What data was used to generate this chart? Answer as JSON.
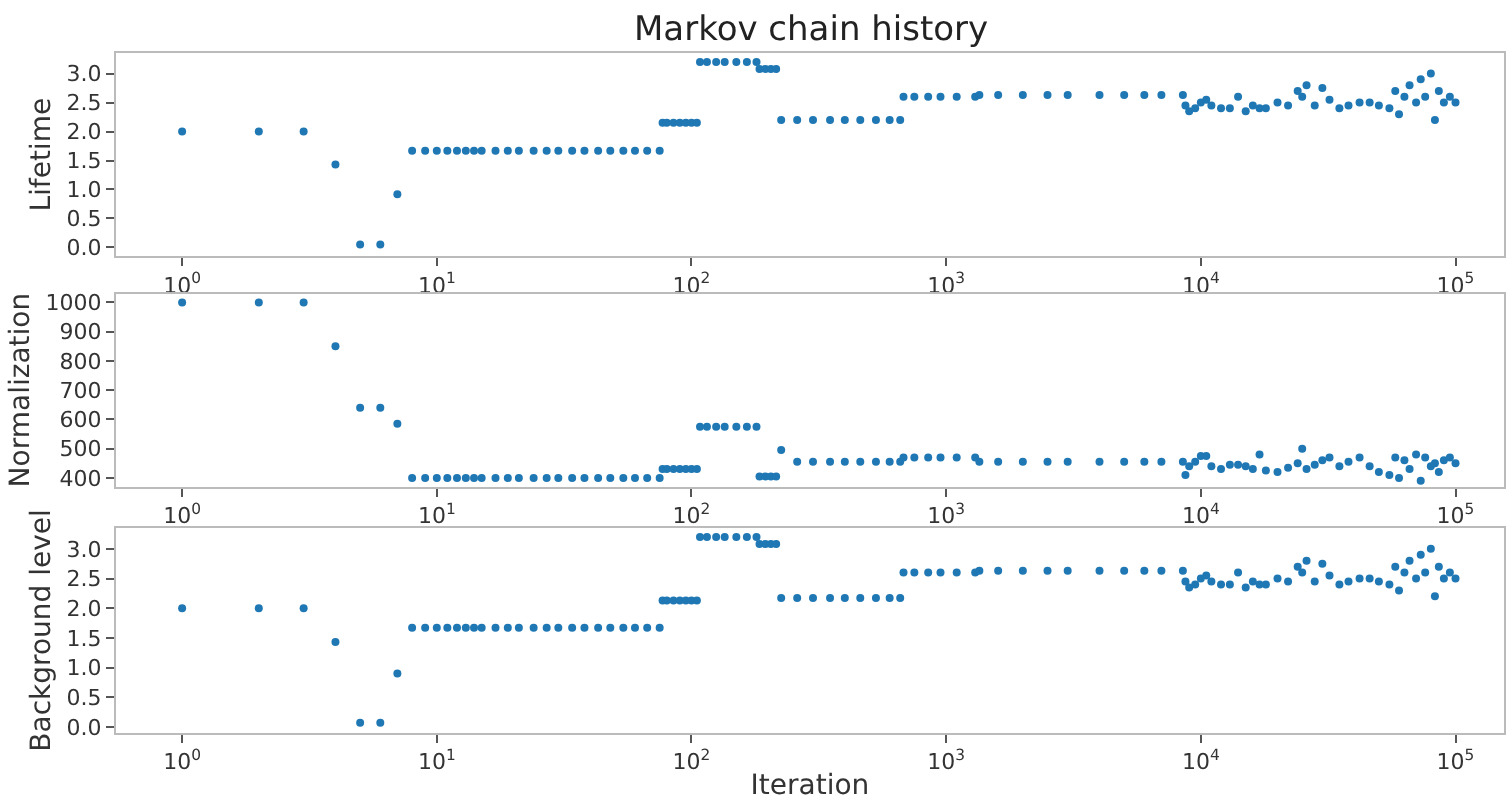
{
  "chart_data": [
    {
      "type": "scatter",
      "title": "Markov chain history",
      "ylabel": "Lifetime",
      "marker": "circle",
      "log": "x",
      "xlim": [
        0.55,
        155000
      ],
      "xticks": [
        {
          "value": 1,
          "label": "10$^{0}$"
        },
        {
          "value": 10,
          "label": "10$^{1}$"
        },
        {
          "value": 100,
          "label": "10$^{2}$"
        },
        {
          "value": 1000,
          "label": "10$^{3}$"
        },
        {
          "value": 10000,
          "label": "10$^{4}$"
        },
        {
          "value": 100000,
          "label": "10$^{5}$"
        }
      ],
      "ylim": [
        -0.15,
        3.35
      ],
      "yticks": [
        {
          "value": 0,
          "label": "0.0"
        },
        0.5,
        {
          "value": 1,
          "label": "1.0"
        },
        1.5,
        {
          "value": 2,
          "label": "2.0"
        },
        2.5,
        {
          "value": 3,
          "label": "3.0"
        }
      ],
      "series": [
        {
          "color": "#1f77b4",
          "x": [
            1,
            2,
            3,
            4,
            5,
            6,
            7,
            8,
            9,
            10,
            11,
            12,
            13,
            14,
            15,
            17,
            19,
            21,
            24,
            27,
            30,
            34,
            38,
            43,
            48,
            54,
            60,
            67,
            75,
            77,
            80,
            85,
            90,
            95,
            100,
            105,
            108,
            115,
            125,
            135,
            150,
            165,
            180,
            185,
            195,
            205,
            215,
            225,
            260,
            300,
            350,
            400,
            460,
            530,
            600,
            660,
            680,
            750,
            850,
            950,
            1100,
            1300,
            1350,
            1600,
            2000,
            2500,
            3000,
            4000,
            5000,
            6000,
            7000,
            8500,
            8700,
            9000,
            9500,
            10000,
            10500,
            11000,
            12000,
            13000,
            14000,
            15000,
            16000,
            17000,
            18000,
            20000,
            22000,
            24000,
            25000,
            26000,
            28000,
            30000,
            32000,
            35000,
            38000,
            42000,
            46000,
            50000,
            55000,
            58000,
            60000,
            63000,
            66000,
            70000,
            73000,
            76000,
            80000,
            83000,
            86000,
            90000,
            95000,
            100000
          ],
          "values": [
            2.0,
            2.0,
            2.0,
            1.43,
            0.05,
            0.05,
            0.92,
            1.67,
            1.67,
            1.67,
            1.67,
            1.67,
            1.67,
            1.67,
            1.67,
            1.67,
            1.67,
            1.67,
            1.67,
            1.67,
            1.67,
            1.67,
            1.67,
            1.67,
            1.67,
            1.67,
            1.67,
            1.67,
            1.67,
            2.15,
            2.15,
            2.15,
            2.15,
            2.15,
            2.15,
            2.15,
            3.2,
            3.2,
            3.2,
            3.2,
            3.2,
            3.2,
            3.2,
            3.08,
            3.08,
            3.08,
            3.08,
            2.2,
            2.2,
            2.2,
            2.2,
            2.2,
            2.2,
            2.2,
            2.2,
            2.2,
            2.6,
            2.6,
            2.6,
            2.6,
            2.6,
            2.6,
            2.63,
            2.63,
            2.63,
            2.63,
            2.63,
            2.63,
            2.63,
            2.63,
            2.63,
            2.63,
            2.45,
            2.35,
            2.4,
            2.5,
            2.55,
            2.45,
            2.4,
            2.4,
            2.6,
            2.35,
            2.45,
            2.4,
            2.4,
            2.5,
            2.45,
            2.7,
            2.6,
            2.8,
            2.45,
            2.75,
            2.55,
            2.4,
            2.45,
            2.5,
            2.5,
            2.45,
            2.4,
            2.7,
            2.3,
            2.6,
            2.8,
            2.5,
            2.9,
            2.6,
            3.0,
            2.2,
            2.7,
            2.5,
            2.6,
            2.5
          ]
        }
      ]
    },
    {
      "type": "scatter",
      "ylabel": "Normalization",
      "marker": "circle",
      "log": "x",
      "xlim": [
        0.55,
        155000
      ],
      "xticks": [
        {
          "value": 1,
          "label": "10$^{0}$"
        },
        {
          "value": 10,
          "label": "10$^{1}$"
        },
        {
          "value": 100,
          "label": "10$^{2}$"
        },
        {
          "value": 1000,
          "label": "10$^{3}$"
        },
        {
          "value": 10000,
          "label": "10$^{4}$"
        },
        {
          "value": 100000,
          "label": "10$^{5}$"
        }
      ],
      "ylim": [
        370,
        1030
      ],
      "yticks": [
        400,
        500,
        600,
        700,
        800,
        900,
        1000
      ],
      "series": [
        {
          "color": "#1f77b4",
          "x": [
            1,
            2,
            3,
            4,
            5,
            6,
            7,
            8,
            9,
            10,
            11,
            12,
            13,
            14,
            15,
            17,
            19,
            21,
            24,
            27,
            30,
            34,
            38,
            43,
            48,
            54,
            60,
            67,
            75,
            77,
            80,
            85,
            90,
            95,
            100,
            105,
            108,
            115,
            125,
            135,
            150,
            165,
            180,
            185,
            195,
            205,
            215,
            225,
            260,
            300,
            350,
            400,
            460,
            530,
            600,
            660,
            680,
            750,
            850,
            950,
            1100,
            1300,
            1350,
            1600,
            2000,
            2500,
            3000,
            4000,
            5000,
            6000,
            7000,
            8500,
            8700,
            9000,
            9500,
            10000,
            10500,
            11000,
            12000,
            13000,
            14000,
            15000,
            16000,
            17000,
            18000,
            20000,
            22000,
            24000,
            25000,
            26000,
            28000,
            30000,
            32000,
            35000,
            38000,
            42000,
            46000,
            50000,
            55000,
            58000,
            60000,
            63000,
            66000,
            70000,
            73000,
            76000,
            80000,
            83000,
            86000,
            90000,
            95000,
            100000
          ],
          "values": [
            1000,
            1000,
            1000,
            850,
            640,
            640,
            585,
            400,
            400,
            400,
            400,
            400,
            400,
            400,
            400,
            400,
            400,
            400,
            400,
            400,
            400,
            400,
            400,
            400,
            400,
            400,
            400,
            400,
            400,
            430,
            430,
            430,
            430,
            430,
            430,
            430,
            575,
            575,
            575,
            575,
            575,
            575,
            575,
            405,
            405,
            405,
            405,
            495,
            455,
            455,
            455,
            455,
            455,
            455,
            455,
            455,
            470,
            470,
            470,
            470,
            470,
            470,
            455,
            455,
            455,
            455,
            455,
            455,
            455,
            455,
            455,
            455,
            410,
            440,
            455,
            475,
            475,
            440,
            430,
            445,
            445,
            440,
            430,
            480,
            425,
            420,
            435,
            450,
            500,
            430,
            445,
            460,
            470,
            440,
            455,
            470,
            440,
            420,
            410,
            470,
            400,
            460,
            430,
            480,
            390,
            470,
            440,
            450,
            420,
            460,
            470,
            450
          ]
        }
      ]
    },
    {
      "type": "scatter",
      "xlabel": "Iteration",
      "ylabel": "Background level",
      "marker": "circle",
      "log": "x",
      "xlim": [
        0.55,
        155000
      ],
      "xticks": [
        {
          "value": 1,
          "label": "10$^{0}$"
        },
        {
          "value": 10,
          "label": "10$^{1}$"
        },
        {
          "value": 100,
          "label": "10$^{2}$"
        },
        {
          "value": 1000,
          "label": "10$^{3}$"
        },
        {
          "value": 10000,
          "label": "10$^{4}$"
        },
        {
          "value": 100000,
          "label": "10$^{5}$"
        }
      ],
      "ylim": [
        -0.1,
        3.35
      ],
      "yticks": [
        {
          "value": 0,
          "label": "0.0"
        },
        0.5,
        {
          "value": 1,
          "label": "1.0"
        },
        1.5,
        {
          "value": 2,
          "label": "2.0"
        },
        2.5,
        {
          "value": 3,
          "label": "3.0"
        }
      ],
      "series": [
        {
          "color": "#1f77b4",
          "x": [
            1,
            2,
            3,
            4,
            5,
            6,
            7,
            8,
            9,
            10,
            11,
            12,
            13,
            14,
            15,
            17,
            19,
            21,
            24,
            27,
            30,
            34,
            38,
            43,
            48,
            54,
            60,
            67,
            75,
            77,
            80,
            85,
            90,
            95,
            100,
            105,
            108,
            115,
            125,
            135,
            150,
            165,
            180,
            185,
            195,
            205,
            215,
            225,
            260,
            300,
            350,
            400,
            460,
            530,
            600,
            660,
            680,
            750,
            850,
            950,
            1100,
            1300,
            1350,
            1600,
            2000,
            2500,
            3000,
            4000,
            5000,
            6000,
            7000,
            8500,
            8700,
            9000,
            9500,
            10000,
            10500,
            11000,
            12000,
            13000,
            14000,
            15000,
            16000,
            17000,
            18000,
            20000,
            22000,
            24000,
            25000,
            26000,
            28000,
            30000,
            32000,
            35000,
            38000,
            42000,
            46000,
            50000,
            55000,
            58000,
            60000,
            63000,
            66000,
            70000,
            73000,
            76000,
            80000,
            83000,
            86000,
            90000,
            95000,
            100000
          ],
          "values": [
            2.0,
            2.0,
            2.0,
            1.43,
            0.07,
            0.07,
            0.9,
            1.67,
            1.67,
            1.67,
            1.67,
            1.67,
            1.67,
            1.67,
            1.67,
            1.67,
            1.67,
            1.67,
            1.67,
            1.67,
            1.67,
            1.67,
            1.67,
            1.67,
            1.67,
            1.67,
            1.67,
            1.67,
            1.67,
            2.13,
            2.13,
            2.13,
            2.13,
            2.13,
            2.13,
            2.13,
            3.2,
            3.2,
            3.2,
            3.2,
            3.2,
            3.2,
            3.2,
            3.08,
            3.08,
            3.08,
            3.08,
            2.17,
            2.17,
            2.17,
            2.17,
            2.17,
            2.17,
            2.17,
            2.17,
            2.17,
            2.6,
            2.6,
            2.6,
            2.6,
            2.6,
            2.6,
            2.63,
            2.63,
            2.63,
            2.63,
            2.63,
            2.63,
            2.63,
            2.63,
            2.63,
            2.63,
            2.45,
            2.35,
            2.4,
            2.5,
            2.55,
            2.45,
            2.4,
            2.4,
            2.6,
            2.35,
            2.45,
            2.4,
            2.4,
            2.5,
            2.45,
            2.7,
            2.6,
            2.8,
            2.45,
            2.75,
            2.55,
            2.4,
            2.45,
            2.5,
            2.5,
            2.45,
            2.4,
            2.7,
            2.3,
            2.6,
            2.8,
            2.5,
            2.9,
            2.6,
            3.0,
            2.2,
            2.7,
            2.5,
            2.6,
            2.5
          ]
        }
      ]
    }
  ]
}
